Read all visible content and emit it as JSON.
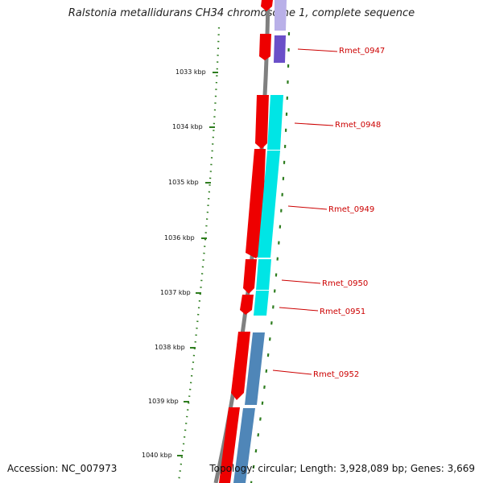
{
  "title": "Ralstonia metallidurans CH34 chromosome 1, complete sequence",
  "accession_text": "Accession: NC_007973",
  "topology_text": "Topology: circular; Length: 3,928,089 bp; Genes: 3,669",
  "ruler_labels": [
    "1033 kbp",
    "1034 kbp",
    "1035 kbp",
    "1036 kbp",
    "1037 kbp",
    "1038 kbp",
    "1039 kbp",
    "1040 kbp"
  ],
  "genes": [
    {
      "name": "Rmet_0947",
      "strand": "forward",
      "feature_color": "#6a4fc8"
    },
    {
      "name": "Rmet_0948",
      "strand": "reverse",
      "feature_color": "#00e5e5"
    },
    {
      "name": "Rmet_0949",
      "strand": "reverse",
      "feature_color": "#00e5e5"
    },
    {
      "name": "Rmet_0950",
      "strand": "reverse",
      "feature_color": "#00e5e5"
    },
    {
      "name": "Rmet_0951",
      "strand": "reverse",
      "feature_color": "#00e5e5"
    },
    {
      "name": "Rmet_0952",
      "strand": "reverse",
      "feature_color": "#4f86b8"
    }
  ],
  "colors": {
    "cds": "#ee0000",
    "backbone": "#808080",
    "ruler_ticks": "#2e7d1f",
    "label_text": "#cc0000"
  }
}
